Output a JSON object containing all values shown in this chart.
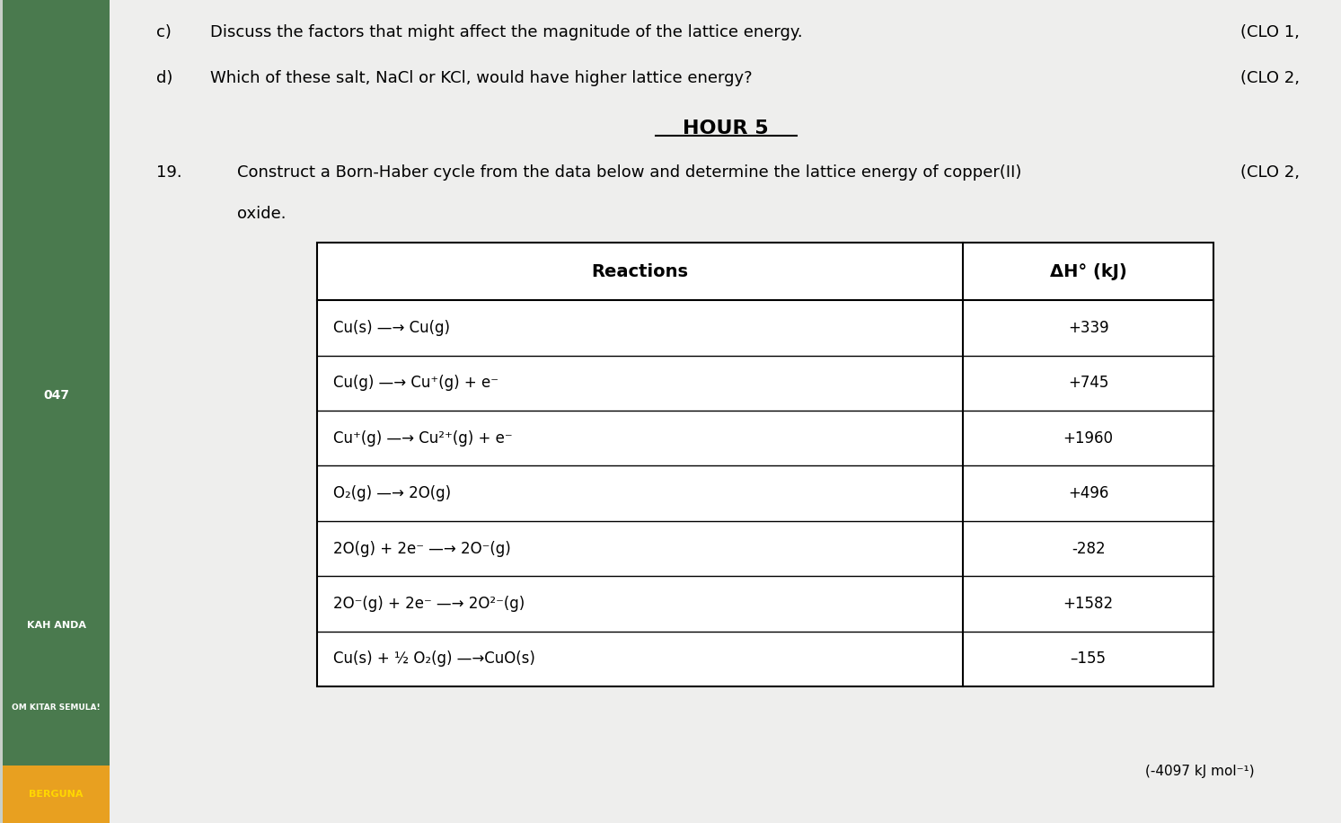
{
  "bg_color": "#c8cfc8",
  "page_bg": "#eeeeed",
  "title_c": "c)",
  "title_d": "d)",
  "text_c": "Discuss the factors that might affect the magnitude of the lattice energy.",
  "text_d": "Which of these salt, NaCl or KCl, would have higher lattice energy?",
  "clo_c": "(CLO 1,",
  "clo_d": "(CLO 2,",
  "hour_title": "HOUR 5",
  "question_num": "19.",
  "question_text": "Construct a Born-Haber cycle from the data below and determine the lattice energy of copper(II)",
  "question_text2": "oxide.",
  "clo_q": "(CLO 2,",
  "col1_header": "Reactions",
  "col2_header": "ΔH° (kJ)",
  "rows": [
    [
      "Cu(s) —→ Cu(g)",
      "+339"
    ],
    [
      "Cu(g) —→ Cu⁺(g) + e⁻",
      "+745"
    ],
    [
      "Cu⁺(g) —→ Cu²⁺(g) + e⁻",
      "+1960"
    ],
    [
      "O₂(g) —→ 2O(g)",
      "+496"
    ],
    [
      "2O(g) + 2e⁻ —→ 2O⁻(g)",
      "-282"
    ],
    [
      "2O⁻(g) + 2e⁻ —→ 2O²⁻(g)",
      "+1582"
    ],
    [
      "Cu(s) + ½ O₂(g) —→CuO(s)",
      "–155"
    ]
  ],
  "answer_text": "(-4097 kJ mol⁻¹)",
  "bottom_left_text1": "KAH ANDA",
  "bottom_left_text2": "OM KITAR SEMULA!",
  "bottom_left_text3": "BERGUNA",
  "green_color": "#4a7a4e",
  "orange_color": "#e8a020",
  "label_047": "047"
}
